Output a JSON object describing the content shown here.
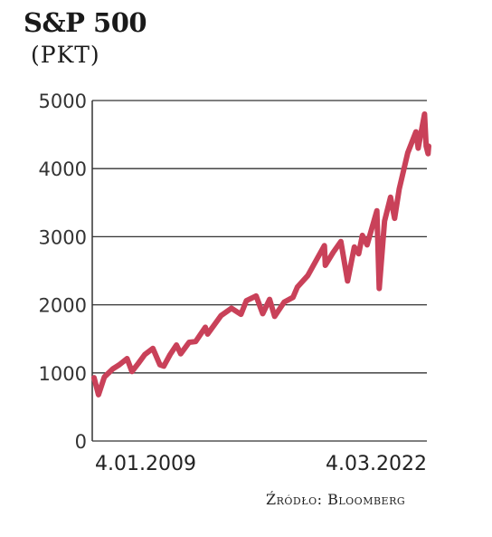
{
  "chart_data": {
    "type": "line",
    "title": "S&P 500",
    "subtitle": "(PKT)",
    "source": "Źródło: Bloomberg",
    "ylim": [
      0,
      5000
    ],
    "yticks": [
      "0",
      "1000",
      "2000",
      "3000",
      "4000",
      "5000"
    ],
    "xtick_labels": [
      "4.01.2009",
      "4.03.2022"
    ],
    "grid": "horizontal",
    "line_color": "#c94159",
    "series": [
      {
        "x": [
          "2009-01-04",
          "2009-03-09",
          "2009-06-01",
          "2009-10-01",
          "2010-01-01",
          "2010-04-23",
          "2010-07-02",
          "2010-10-01",
          "2011-01-03",
          "2011-04-29",
          "2011-08-08",
          "2011-10-03",
          "2012-01-02",
          "2012-04-02",
          "2012-06-01",
          "2012-10-01",
          "2013-01-02",
          "2013-05-21",
          "2013-06-24",
          "2014-01-01",
          "2014-06-01",
          "2014-10-15",
          "2015-01-01",
          "2015-05-21",
          "2015-08-24",
          "2015-12-01",
          "2016-02-11",
          "2016-06-27",
          "2016-11-01",
          "2017-01-03",
          "2017-06-01",
          "2018-01-26",
          "2018-02-08",
          "2018-06-01",
          "2018-09-20",
          "2018-12-24",
          "2019-04-01",
          "2019-06-03",
          "2019-07-26",
          "2019-10-01",
          "2020-02-19",
          "2020-03-23",
          "2020-06-08",
          "2020-09-02",
          "2020-10-30",
          "2021-01-04",
          "2021-05-07",
          "2021-09-02",
          "2021-10-04",
          "2022-01-03",
          "2022-01-27",
          "2022-02-23",
          "2022-03-04"
        ],
        "values": [
          930,
          680,
          940,
          1060,
          1120,
          1210,
          1020,
          1140,
          1270,
          1360,
          1120,
          1100,
          1270,
          1410,
          1280,
          1450,
          1460,
          1670,
          1570,
          1840,
          1950,
          1860,
          2060,
          2130,
          1870,
          2080,
          1830,
          2040,
          2110,
          2260,
          2430,
          2870,
          2580,
          2770,
          2930,
          2350,
          2850,
          2750,
          3020,
          2880,
          3380,
          2240,
          3230,
          3580,
          3270,
          3700,
          4230,
          4540,
          4300,
          4800,
          4330,
          4220,
          4330
        ]
      }
    ]
  }
}
